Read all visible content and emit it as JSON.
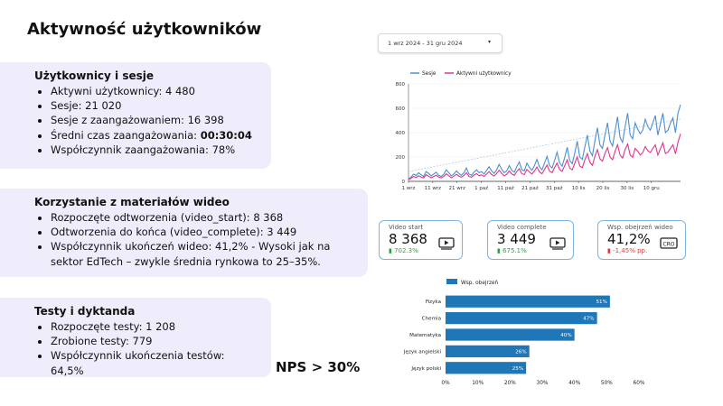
{
  "page_title": "Aktywność użytkowników",
  "users_section": {
    "heading": "Użytkownicy i sesje",
    "items": [
      {
        "text": "Aktywni użytkownicy: 4 480"
      },
      {
        "text": "Sesje: 21 020"
      },
      {
        "text": "Sesje z zaangażowaniem: 16 398"
      },
      {
        "text": "Średni czas zaangażowania: ",
        "strong": "00:30:04"
      },
      {
        "text": "Współczynnik zaangażowania: 78%"
      }
    ]
  },
  "video_section": {
    "heading": "Korzystanie z materiałów wideo",
    "items": [
      {
        "text": "Rozpoczęte odtworzenia (video_start): 8 368"
      },
      {
        "text": "Odtworzenia do końca (video_complete): 3 449"
      },
      {
        "text": "Współczynnik ukończeń wideo: 41,2% - Wysoki jak na sektor EdTech – zwykle średnia rynkowa to 25–35%."
      }
    ]
  },
  "tests_section": {
    "heading": "Testy i dyktanda",
    "items": [
      {
        "text": "Rozpoczęte testy: 1 208"
      },
      {
        "text": "Zrobione testy: 779"
      },
      {
        "text": "Współczynnik ukończenia testów: 64,5%"
      }
    ]
  },
  "nps": "NPS > 30%",
  "date_range": "1 wrz 2024 - 31 gru 2024",
  "kpis": {
    "start": {
      "label": "Video start",
      "value": "8 368",
      "delta": "▮ 702.3%",
      "trend": "up",
      "icon": "video-play-icon"
    },
    "complete": {
      "label": "Video complete",
      "value": "3 449",
      "delta": "▮ 675.1%",
      "trend": "up",
      "icon": "video-play-icon"
    },
    "rate": {
      "label": "Wsp. obejrzeń wideo",
      "value": "41,2%",
      "delta": "▮ -1,45% pp.",
      "trend": "down",
      "icon": "cro-icon",
      "icon_text": "CRO"
    }
  },
  "colors": {
    "sessions": "#4a90d0",
    "users": "#e0338f",
    "bar": "#1f77b8",
    "card_bg": "#efecfb"
  },
  "chart_data": [
    {
      "type": "line",
      "legend_position": "top-left",
      "x_ticks": [
        "1 wrz",
        "11 wrz",
        "21 wrz",
        "1 paź",
        "11 paź",
        "21 paź",
        "31 paź",
        "10 lis",
        "20 lis",
        "30 lis",
        "10 gru"
      ],
      "ylim": [
        0,
        800
      ],
      "y_ticks": [
        0,
        200,
        400,
        600,
        800
      ],
      "series": [
        {
          "name": "Sesje",
          "color": "#4a90d0",
          "values": [
            20,
            35,
            60,
            48,
            70,
            55,
            40,
            80,
            65,
            45,
            60,
            75,
            50,
            40,
            58,
            95,
            70,
            45,
            60,
            85,
            65,
            50,
            70,
            110,
            60,
            50,
            75,
            95,
            70,
            80,
            60,
            90,
            120,
            85,
            65,
            95,
            140,
            100,
            70,
            85,
            130,
            90,
            75,
            120,
            160,
            95,
            85,
            150,
            115,
            90,
            130,
            180,
            120,
            95,
            150,
            205,
            130,
            110,
            170,
            240,
            150,
            125,
            195,
            280,
            170,
            145,
            230,
            330,
            200,
            180,
            280,
            380,
            250,
            210,
            330,
            440,
            300,
            270,
            380,
            480,
            330,
            290,
            410,
            530,
            360,
            320,
            450,
            560,
            380,
            350,
            480,
            430,
            390,
            420,
            510,
            450,
            420,
            480,
            540,
            380,
            470,
            560,
            400,
            420,
            480,
            520,
            400,
            560,
            630
          ]
        },
        {
          "name": "Aktywni użytkownicy",
          "color": "#e0338f",
          "values": [
            15,
            25,
            40,
            32,
            45,
            35,
            28,
            55,
            42,
            30,
            40,
            50,
            35,
            28,
            40,
            62,
            46,
            30,
            42,
            58,
            44,
            34,
            48,
            70,
            40,
            34,
            52,
            64,
            46,
            54,
            40,
            60,
            80,
            56,
            44,
            64,
            92,
            66,
            46,
            58,
            86,
            60,
            50,
            80,
            104,
            62,
            56,
            98,
            76,
            60,
            86,
            118,
            78,
            62,
            98,
            134,
            84,
            72,
            112,
            150,
            96,
            82,
            128,
            176,
            110,
            94,
            148,
            200,
            126,
            112,
            176,
            228,
            156,
            132,
            204,
            260,
            186,
            166,
            230,
            276,
            200,
            178,
            246,
            300,
            216,
            192,
            262,
            306,
            216,
            198,
            270,
            248,
            216,
            236,
            286,
            252,
            236,
            270,
            300,
            216,
            266,
            316,
            228,
            240,
            272,
            300,
            226,
            320,
            390
          ]
        },
        {
          "name": "trend",
          "color": "#b7c9e0",
          "values": [
            80,
            84,
            88,
            92,
            96,
            100,
            104,
            108,
            112,
            116,
            120,
            124,
            128,
            132,
            136,
            140,
            144,
            148,
            152,
            156,
            160,
            164,
            168,
            172,
            176,
            180,
            184,
            188,
            192,
            196,
            200,
            204,
            208,
            212,
            216,
            220,
            224,
            228,
            232,
            236,
            240,
            244,
            248,
            252,
            256,
            260,
            264,
            268,
            272,
            276,
            280,
            284,
            288,
            292,
            296,
            300,
            304,
            308,
            312,
            316,
            320,
            324,
            328,
            332,
            336,
            340,
            344,
            348,
            352,
            356,
            360,
            364,
            368,
            372,
            376,
            380,
            384,
            388,
            392,
            396,
            400,
            404,
            408,
            412,
            416,
            420,
            424,
            428,
            432,
            436,
            440,
            444,
            448,
            452,
            456,
            460,
            464,
            468,
            472,
            476,
            480,
            484,
            488,
            492,
            496,
            500,
            504,
            508,
            512
          ]
        }
      ]
    },
    {
      "type": "bar",
      "orientation": "horizontal",
      "legend": "Wsp. obejrzeń",
      "categories": [
        "Fizyka",
        "Chemia",
        "Matematyka",
        "Język angielski",
        "Język polski"
      ],
      "values": [
        51,
        47,
        40,
        26,
        25
      ],
      "value_labels": [
        "51%",
        "47%",
        "40%",
        "26%",
        "25%"
      ],
      "xlim": [
        0,
        60
      ],
      "x_ticks": [
        "0%",
        "10%",
        "20%",
        "30%",
        "40%",
        "50%",
        "60%"
      ]
    }
  ]
}
